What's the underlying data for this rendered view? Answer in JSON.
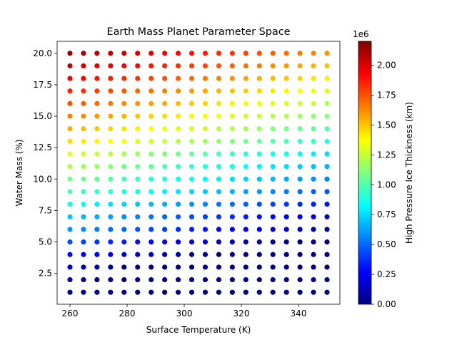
{
  "chart_data": {
    "type": "scatter",
    "title": "Earth Mass Planet Parameter Space",
    "xlabel": "Surface Temperature (K)",
    "ylabel": "Water Mass (%)",
    "xlim": [
      255.5,
      354.5
    ],
    "ylim": [
      0.05,
      20.95
    ],
    "x_ticks": [
      260,
      280,
      300,
      320,
      340
    ],
    "x_tick_labels": [
      "260",
      "280",
      "300",
      "320",
      "340"
    ],
    "y_ticks": [
      2.5,
      5.0,
      7.5,
      10.0,
      12.5,
      15.0,
      17.5,
      20.0
    ],
    "y_tick_labels": [
      "2.5",
      "5.0",
      "7.5",
      "10.0",
      "12.5",
      "15.0",
      "17.5",
      "20.0"
    ],
    "grid": false,
    "x": [
      260,
      264.74,
      269.47,
      274.21,
      278.95,
      283.68,
      288.42,
      293.16,
      297.89,
      302.63,
      307.37,
      312.11,
      316.84,
      321.58,
      326.32,
      331.05,
      335.79,
      340.53,
      345.26,
      350
    ],
    "y": [
      1,
      2,
      3,
      4,
      5,
      6,
      7,
      8,
      9,
      10,
      11,
      12,
      13,
      14,
      15,
      16,
      17,
      18,
      19,
      20
    ],
    "thickness_by_water_mass": [
      0.02,
      0.05,
      0.12,
      0.3,
      0.45,
      0.6,
      0.7,
      0.85,
      1.0,
      1.1,
      1.2,
      1.3,
      1.45,
      1.55,
      1.65,
      1.75,
      1.85,
      1.95,
      2.05,
      2.15
    ],
    "thickness_temperature_decrease_per_K": 0.006,
    "thickness_units": "millions of km",
    "colorbar": {
      "label": "High Pressure Ice Thickness (km)",
      "multiplier_label": "1e6",
      "colormap": "jet",
      "range": [
        0,
        2.2
      ],
      "ticks": [
        0.0,
        0.25,
        0.5,
        0.75,
        1.0,
        1.25,
        1.5,
        1.75,
        2.0
      ],
      "tick_labels": [
        "0.00",
        "0.25",
        "0.50",
        "0.75",
        "1.00",
        "1.25",
        "1.50",
        "1.75",
        "2.00"
      ]
    }
  }
}
